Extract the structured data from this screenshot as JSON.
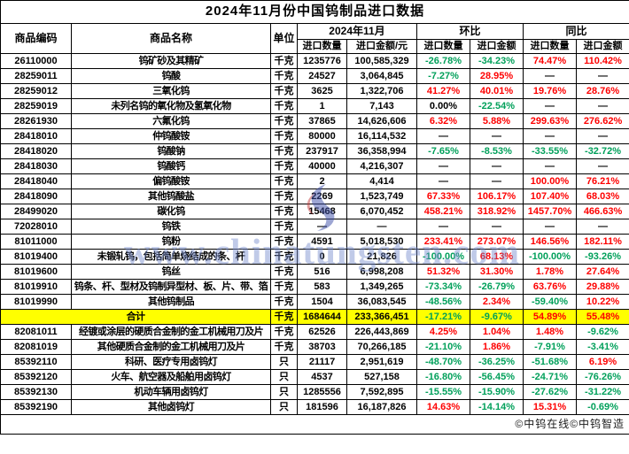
{
  "title": "2024年11月份中国钨制品进口数据",
  "header": {
    "code": "商品编码",
    "name": "商品名称",
    "unit": "单位",
    "month_group": "2024年11月",
    "mom_group": "环比",
    "yoy_group": "同比",
    "qty": "进口数量",
    "value_yuan": "进口金额/元",
    "value": "进口金额"
  },
  "colors": {
    "up": "#fe0000",
    "down": "#00a05a",
    "flat": "#000000",
    "total_bg": "#ffff00",
    "watermark": "#748acd"
  },
  "rows": [
    {
      "code": "26110000",
      "name": "钨矿砂及其精矿",
      "unit": "千克",
      "qty": "1235776",
      "val": "100,585,329",
      "pcts": [
        [
          "-26.78%",
          "down"
        ],
        [
          "-34.23%",
          "down"
        ],
        [
          "74.47%",
          "up"
        ],
        [
          "110.42%",
          "up"
        ]
      ]
    },
    {
      "code": "28259011",
      "name": "钨酸",
      "unit": "千克",
      "qty": "24527",
      "val": "3,064,845",
      "pcts": [
        [
          "-7.27%",
          "down"
        ],
        [
          "28.95%",
          "up"
        ],
        [
          "—",
          "flat"
        ],
        [
          "—",
          "flat"
        ]
      ]
    },
    {
      "code": "28259012",
      "name": "三氧化钨",
      "unit": "千克",
      "qty": "3625",
      "val": "1,322,706",
      "pcts": [
        [
          "41.27%",
          "up"
        ],
        [
          "40.01%",
          "up"
        ],
        [
          "19.76%",
          "up"
        ],
        [
          "28.76%",
          "up"
        ]
      ]
    },
    {
      "code": "28259019",
      "name": "未列名钨的氧化物及氢氧化物",
      "unit": "千克",
      "qty": "1",
      "val": "7,143",
      "pcts": [
        [
          "0.00%",
          "flat"
        ],
        [
          "-22.54%",
          "down"
        ],
        [
          "—",
          "flat"
        ],
        [
          "—",
          "flat"
        ]
      ]
    },
    {
      "code": "28261930",
      "name": "六氟化钨",
      "unit": "千克",
      "qty": "37865",
      "val": "14,626,606",
      "pcts": [
        [
          "6.32%",
          "up"
        ],
        [
          "5.88%",
          "up"
        ],
        [
          "299.63%",
          "up"
        ],
        [
          "276.62%",
          "up"
        ]
      ]
    },
    {
      "code": "28418010",
      "name": "仲钨酸铵",
      "unit": "千克",
      "qty": "80000",
      "val": "16,114,532",
      "pcts": [
        [
          "—",
          "flat"
        ],
        [
          "—",
          "flat"
        ],
        [
          "—",
          "flat"
        ],
        [
          "—",
          "flat"
        ]
      ]
    },
    {
      "code": "28418020",
      "name": "钨酸钠",
      "unit": "千克",
      "qty": "237917",
      "val": "36,358,994",
      "pcts": [
        [
          "-7.65%",
          "down"
        ],
        [
          "-8.53%",
          "down"
        ],
        [
          "-33.55%",
          "down"
        ],
        [
          "-32.72%",
          "down"
        ]
      ]
    },
    {
      "code": "28418030",
      "name": "钨酸钙",
      "unit": "千克",
      "qty": "40000",
      "val": "4,216,307",
      "pcts": [
        [
          "—",
          "flat"
        ],
        [
          "—",
          "flat"
        ],
        [
          "—",
          "flat"
        ],
        [
          "—",
          "flat"
        ]
      ]
    },
    {
      "code": "28418040",
      "name": "偏钨酸铵",
      "unit": "千克",
      "qty": "2",
      "val": "4,414",
      "pcts": [
        [
          "—",
          "flat"
        ],
        [
          "—",
          "flat"
        ],
        [
          "100.00%",
          "up"
        ],
        [
          "76.21%",
          "up"
        ]
      ]
    },
    {
      "code": "28418090",
      "name": "其他钨酸盐",
      "unit": "千克",
      "qty": "2269",
      "val": "1,523,749",
      "pcts": [
        [
          "67.33%",
          "up"
        ],
        [
          "106.17%",
          "up"
        ],
        [
          "107.40%",
          "up"
        ],
        [
          "68.03%",
          "up"
        ]
      ]
    },
    {
      "code": "28499020",
      "name": "碳化钨",
      "unit": "千克",
      "qty": "15468",
      "val": "6,070,452",
      "pcts": [
        [
          "458.21%",
          "up"
        ],
        [
          "318.92%",
          "up"
        ],
        [
          "1457.70%",
          "up"
        ],
        [
          "466.63%",
          "up"
        ]
      ]
    },
    {
      "code": "72028010",
      "name": "钨铁",
      "unit": "千克",
      "qty": "—",
      "val": "—",
      "pcts": [
        [
          "—",
          "flat"
        ],
        [
          "—",
          "flat"
        ],
        [
          "—",
          "flat"
        ],
        [
          "—",
          "flat"
        ]
      ]
    },
    {
      "code": "81011000",
      "name": "钨粉",
      "unit": "千克",
      "qty": "4591",
      "val": "5,018,530",
      "pcts": [
        [
          "233.41%",
          "up"
        ],
        [
          "273.07%",
          "up"
        ],
        [
          "146.56%",
          "up"
        ],
        [
          "182.11%",
          "up"
        ]
      ]
    },
    {
      "code": "81019400",
      "name": "未锻轧钨，包括简单烧结成的条、杆",
      "unit": "千克",
      "qty": "0",
      "val": "21,826",
      "pcts": [
        [
          "-100.00%",
          "down"
        ],
        [
          "68.13%",
          "up"
        ],
        [
          "-100.00%",
          "down"
        ],
        [
          "-93.26%",
          "down"
        ]
      ]
    },
    {
      "code": "81019600",
      "name": "钨丝",
      "unit": "千克",
      "qty": "516",
      "val": "6,998,208",
      "pcts": [
        [
          "51.32%",
          "up"
        ],
        [
          "31.30%",
          "up"
        ],
        [
          "1.78%",
          "up"
        ],
        [
          "27.64%",
          "up"
        ]
      ]
    },
    {
      "code": "81019910",
      "name": "钨条、杆、型材及钨制异型材、板、片、带、箔",
      "unit": "千克",
      "qty": "583",
      "val": "1,349,265",
      "pcts": [
        [
          "-73.34%",
          "down"
        ],
        [
          "-26.79%",
          "down"
        ],
        [
          "63.76%",
          "up"
        ],
        [
          "29.88%",
          "up"
        ]
      ]
    },
    {
      "code": "81019990",
      "name": "其他钨制品",
      "unit": "千克",
      "qty": "1504",
      "val": "36,083,545",
      "pcts": [
        [
          "-48.56%",
          "down"
        ],
        [
          "2.34%",
          "up"
        ],
        [
          "-59.40%",
          "down"
        ],
        [
          "10.22%",
          "up"
        ]
      ]
    },
    {
      "total": true,
      "name": "合计",
      "unit": "千克",
      "qty": "1684644",
      "val": "233,366,451",
      "pcts": [
        [
          "-17.21%",
          "down"
        ],
        [
          "-9.67%",
          "down"
        ],
        [
          "54.89%",
          "up"
        ],
        [
          "55.48%",
          "up"
        ]
      ]
    },
    {
      "code": "82081011",
      "name": "经镀或涂层的硬质合金制的金工机械用刀及片",
      "unit": "千克",
      "qty": "62526",
      "val": "226,443,869",
      "pcts": [
        [
          "4.25%",
          "up"
        ],
        [
          "1.04%",
          "up"
        ],
        [
          "1.48%",
          "up"
        ],
        [
          "-9.62%",
          "down"
        ]
      ]
    },
    {
      "code": "82081019",
      "name": "其他硬质合金制的金工机械用刀及片",
      "unit": "千克",
      "qty": "38703",
      "val": "70,266,185",
      "pcts": [
        [
          "-21.10%",
          "down"
        ],
        [
          "1.86%",
          "up"
        ],
        [
          "-7.91%",
          "down"
        ],
        [
          "-3.41%",
          "down"
        ]
      ]
    },
    {
      "code": "85392110",
      "name": "科研、医疗专用卤钨灯",
      "unit": "只",
      "qty": "21117",
      "val": "2,951,619",
      "pcts": [
        [
          "-48.70%",
          "down"
        ],
        [
          "-36.25%",
          "down"
        ],
        [
          "-51.68%",
          "down"
        ],
        [
          "6.19%",
          "up"
        ]
      ]
    },
    {
      "code": "85392120",
      "name": "火车、航空器及船舶用卤钨灯",
      "unit": "只",
      "qty": "4537",
      "val": "527,158",
      "pcts": [
        [
          "-16.80%",
          "down"
        ],
        [
          "-56.45%",
          "down"
        ],
        [
          "-24.71%",
          "down"
        ],
        [
          "-76.26%",
          "down"
        ]
      ]
    },
    {
      "code": "85392130",
      "name": "机动车辆用卤钨灯",
      "unit": "只",
      "qty": "1285556",
      "val": "7,592,895",
      "pcts": [
        [
          "-15.55%",
          "down"
        ],
        [
          "-15.90%",
          "down"
        ],
        [
          "-27.62%",
          "down"
        ],
        [
          "-31.22%",
          "down"
        ]
      ]
    },
    {
      "code": "85392190",
      "name": "其他卤钨灯",
      "unit": "只",
      "qty": "181596",
      "val": "16,187,826",
      "pcts": [
        [
          "14.63%",
          "up"
        ],
        [
          "-14.14%",
          "down"
        ],
        [
          "15.31%",
          "up"
        ],
        [
          "-0.69%",
          "down"
        ]
      ]
    }
  ],
  "watermark": {
    "text": "www.chinatungsten.com",
    "logo": "chinatungsten-logo"
  },
  "footer": "©中钨在线©中钨智造"
}
